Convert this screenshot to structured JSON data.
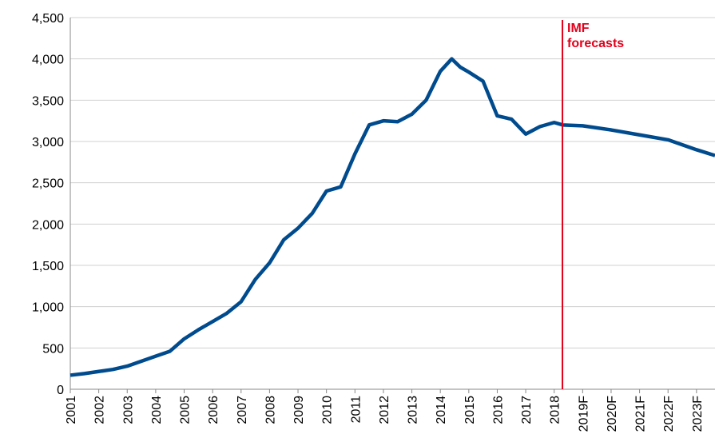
{
  "chart_data": {
    "type": "line",
    "x": [
      2001.0,
      2001.5,
      2002.0,
      2002.5,
      2003.0,
      2003.5,
      2004.0,
      2004.5,
      2005.0,
      2005.5,
      2006.0,
      2006.5,
      2007.0,
      2007.5,
      2008.0,
      2008.5,
      2009.0,
      2009.5,
      2010.0,
      2010.5,
      2011.0,
      2011.5,
      2012.0,
      2012.5,
      2013.0,
      2013.5,
      2014.0,
      2014.4,
      2014.7,
      2015.0,
      2015.5,
      2016.0,
      2016.5,
      2017.0,
      2017.5,
      2018.0,
      2018.3,
      2019.0,
      2020.0,
      2021.0,
      2022.0,
      2023.0,
      2023.65
    ],
    "series": [
      {
        "color": "#004b8d",
        "values": [
          170,
          190,
          215,
          240,
          280,
          340,
          400,
          460,
          610,
          720,
          820,
          920,
          1060,
          1330,
          1530,
          1810,
          1950,
          2130,
          2400,
          2450,
          2850,
          3200,
          3250,
          3240,
          3330,
          3500,
          3850,
          4000,
          3900,
          3840,
          3730,
          3310,
          3270,
          3090,
          3180,
          3230,
          3200,
          3190,
          3140,
          3080,
          3020,
          2900,
          2830
        ]
      }
    ],
    "xlim": [
      2001,
      2023.65
    ],
    "xticks": [
      2001,
      2002,
      2003,
      2004,
      2005,
      2006,
      2007,
      2008,
      2009,
      2010,
      2011,
      2012,
      2013,
      2014,
      2015,
      2016,
      2017,
      2018,
      {
        "value": 2019,
        "label": "2019F"
      },
      {
        "value": 2020,
        "label": "2020F"
      },
      {
        "value": 2021,
        "label": "2021F"
      },
      {
        "value": 2022,
        "label": "2022F"
      },
      {
        "value": 2023,
        "label": "2023F"
      }
    ],
    "ylim": [
      0,
      4500
    ],
    "yticks": [
      0,
      500,
      {
        "value": 1000,
        "label": "1,000"
      },
      {
        "value": 1500,
        "label": "1,500"
      },
      {
        "value": 2000,
        "label": "2,000"
      },
      {
        "value": 2500,
        "label": "2,500"
      },
      {
        "value": 3000,
        "label": "3,000"
      },
      {
        "value": 3500,
        "label": "3,500"
      },
      {
        "value": 4000,
        "label": "4,000"
      },
      {
        "value": 4500,
        "label": "4,500"
      }
    ],
    "grid": true,
    "annotation": {
      "lines": [
        "IMF",
        "forecasts"
      ],
      "x": 2018.29,
      "color": "#e3001b"
    }
  }
}
